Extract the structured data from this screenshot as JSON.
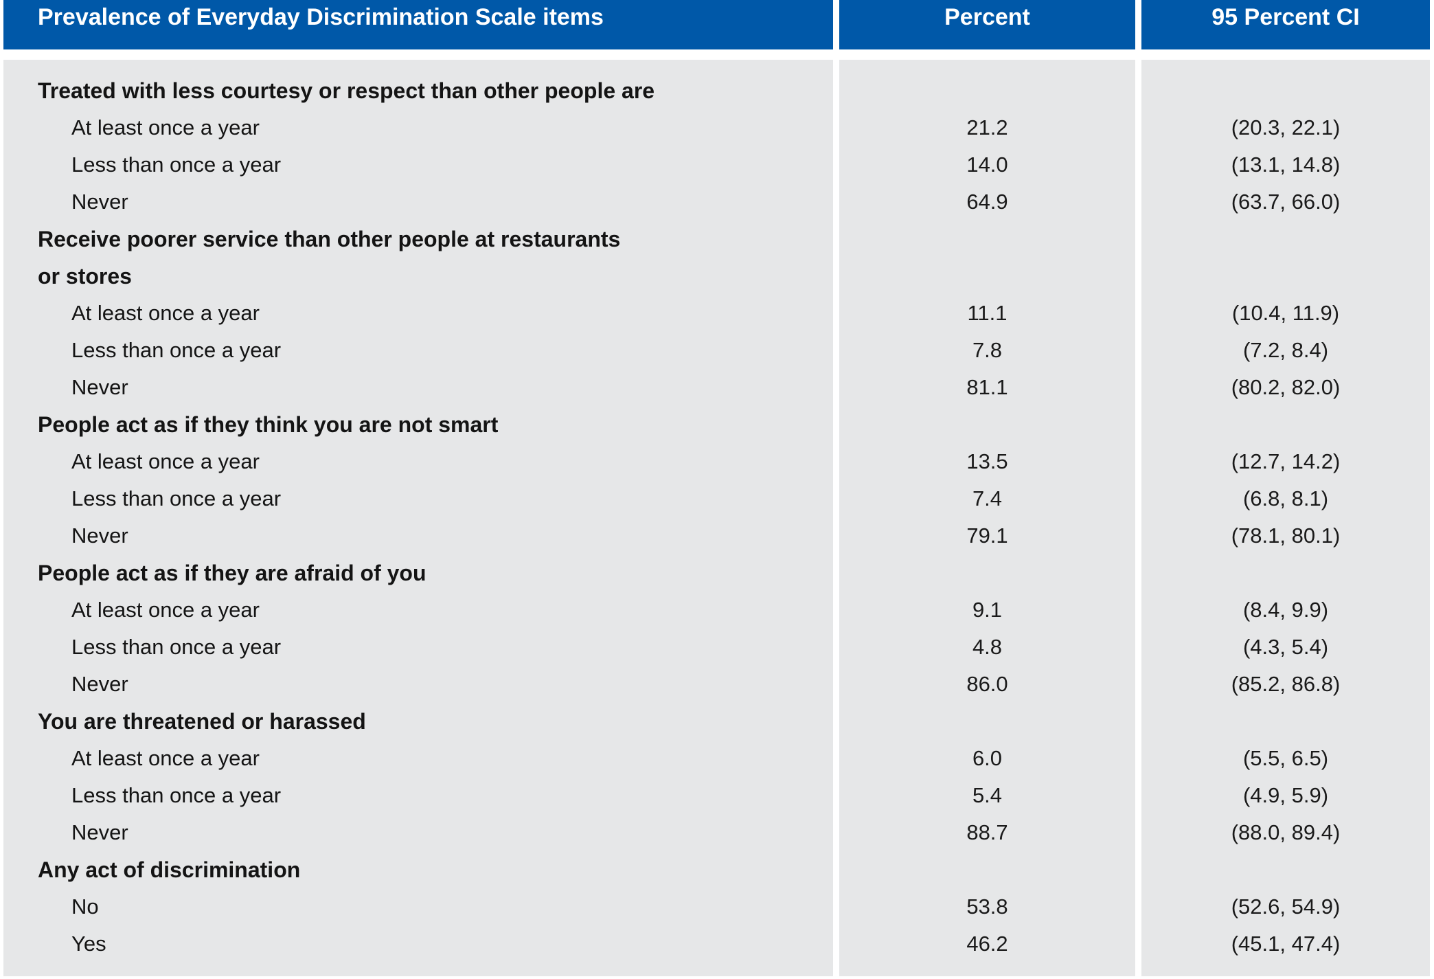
{
  "header": {
    "title": "Prevalence of Everyday Discrimination Scale items",
    "col_percent": "Percent",
    "col_ci": "95 Percent CI"
  },
  "colors": {
    "header_blue": "#0058a8",
    "body_gray": "#e6e7e8",
    "header_text": "#ffffff",
    "body_text": "#141414"
  },
  "rows": [
    {
      "label": "Treated with less courtesy or respect than other people are",
      "percent": "",
      "ci": ""
    },
    {
      "label": "At least once a year",
      "percent": "21.2",
      "ci": "(20.3, 22.1)"
    },
    {
      "label": "Less than once a year",
      "percent": "14.0",
      "ci": "(13.1, 14.8)"
    },
    {
      "label": "Never",
      "percent": "64.9",
      "ci": "(63.7, 66.0)"
    },
    {
      "label": "Receive poorer service than other people at restaurants",
      "percent": "",
      "ci": ""
    },
    {
      "label": "or stores",
      "percent": "",
      "ci": ""
    },
    {
      "label": "At least once a year",
      "percent": "11.1",
      "ci": "(10.4, 11.9)"
    },
    {
      "label": "Less than once a year",
      "percent": "7.8",
      "ci": "(7.2, 8.4)"
    },
    {
      "label": "Never",
      "percent": "81.1",
      "ci": "(80.2, 82.0)"
    },
    {
      "label": "People act as if they think you are not smart",
      "percent": "",
      "ci": ""
    },
    {
      "label": "At least once a year",
      "percent": "13.5",
      "ci": "(12.7, 14.2)"
    },
    {
      "label": "Less than once a year",
      "percent": "7.4",
      "ci": "(6.8, 8.1)"
    },
    {
      "label": "Never",
      "percent": "79.1",
      "ci": "(78.1, 80.1)"
    },
    {
      "label": "People act as if they are afraid of you",
      "percent": "",
      "ci": ""
    },
    {
      "label": "At least once a year",
      "percent": "9.1",
      "ci": "(8.4, 9.9)"
    },
    {
      "label": "Less than once a year",
      "percent": "4.8",
      "ci": "(4.3, 5.4)"
    },
    {
      "label": "Never",
      "percent": "86.0",
      "ci": "(85.2, 86.8)"
    },
    {
      "label": "You are threatened or harassed",
      "percent": "",
      "ci": ""
    },
    {
      "label": "At least once a year",
      "percent": "6.0",
      "ci": "(5.5, 6.5)"
    },
    {
      "label": "Less than once a year",
      "percent": "5.4",
      "ci": "(4.9, 5.9)"
    },
    {
      "label": "Never",
      "percent": "88.7",
      "ci": "(88.0, 89.4)"
    },
    {
      "label": "Any act of discrimination",
      "percent": "",
      "ci": ""
    },
    {
      "label": "No",
      "percent": "53.8",
      "ci": "(52.6, 54.9)"
    },
    {
      "label": "Yes",
      "percent": "46.2",
      "ci": "(45.1, 47.4)"
    }
  ],
  "chart_data": {
    "type": "table",
    "title": "Prevalence of Everyday Discrimination Scale items",
    "columns": [
      "Prevalence of Everyday Discrimination Scale items",
      "Percent",
      "95 Percent CI"
    ],
    "groups": [
      {
        "item": "Treated with less courtesy or respect than other people are",
        "responses": [
          {
            "label": "At least once a year",
            "percent": 21.2,
            "ci": [
              20.3,
              22.1
            ]
          },
          {
            "label": "Less than once a year",
            "percent": 14.0,
            "ci": [
              13.1,
              14.8
            ]
          },
          {
            "label": "Never",
            "percent": 64.9,
            "ci": [
              63.7,
              66.0
            ]
          }
        ]
      },
      {
        "item": "Receive poorer service than other people at restaurants or stores",
        "responses": [
          {
            "label": "At least once a year",
            "percent": 11.1,
            "ci": [
              10.4,
              11.9
            ]
          },
          {
            "label": "Less than once a year",
            "percent": 7.8,
            "ci": [
              7.2,
              8.4
            ]
          },
          {
            "label": "Never",
            "percent": 81.1,
            "ci": [
              80.2,
              82.0
            ]
          }
        ]
      },
      {
        "item": "People act as if they think you are not smart",
        "responses": [
          {
            "label": "At least once a year",
            "percent": 13.5,
            "ci": [
              12.7,
              14.2
            ]
          },
          {
            "label": "Less than once a year",
            "percent": 7.4,
            "ci": [
              6.8,
              8.1
            ]
          },
          {
            "label": "Never",
            "percent": 79.1,
            "ci": [
              78.1,
              80.1
            ]
          }
        ]
      },
      {
        "item": "People act as if they are afraid of you",
        "responses": [
          {
            "label": "At least once a year",
            "percent": 9.1,
            "ci": [
              8.4,
              9.9
            ]
          },
          {
            "label": "Less than once a year",
            "percent": 4.8,
            "ci": [
              4.3,
              5.4
            ]
          },
          {
            "label": "Never",
            "percent": 86.0,
            "ci": [
              85.2,
              86.8
            ]
          }
        ]
      },
      {
        "item": "You are threatened or harassed",
        "responses": [
          {
            "label": "At least once a year",
            "percent": 6.0,
            "ci": [
              5.5,
              6.5
            ]
          },
          {
            "label": "Less than once a year",
            "percent": 5.4,
            "ci": [
              4.9,
              5.9
            ]
          },
          {
            "label": "Never",
            "percent": 88.7,
            "ci": [
              88.0,
              89.4
            ]
          }
        ]
      },
      {
        "item": "Any act of discrimination",
        "responses": [
          {
            "label": "No",
            "percent": 53.8,
            "ci": [
              52.6,
              54.9
            ]
          },
          {
            "label": "Yes",
            "percent": 46.2,
            "ci": [
              45.1,
              47.4
            ]
          }
        ]
      }
    ]
  }
}
